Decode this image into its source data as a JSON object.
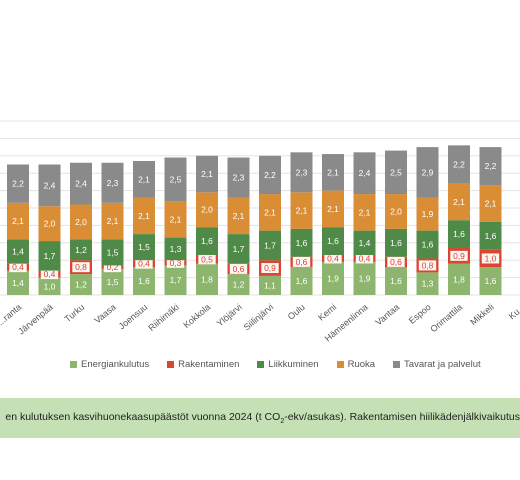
{
  "chart_data": {
    "type": "bar",
    "stacked": true,
    "categories": [
      "...ranta",
      "Järvenpää",
      "Turku",
      "Vaasa",
      "Joensuu",
      "Riihimäki",
      "Kokkola",
      "Ylöjärvi",
      "Siilinjärvi",
      "Oulu",
      "Kemi",
      "Hämeenlinna",
      "Vantaa",
      "Espoo",
      "Orimattila",
      "Mikkeli",
      "Ku..."
    ],
    "series": [
      {
        "name": "Energiankulutus",
        "color": "#8db56e",
        "values": [
          1.4,
          1.0,
          1.2,
          1.5,
          1.6,
          1.7,
          1.8,
          1.2,
          1.1,
          1.6,
          1.9,
          1.9,
          1.6,
          1.3,
          1.8,
          1.6,
          null
        ],
        "labels": [
          "1,4",
          "1,0",
          "1,2",
          "1,5",
          "1,6",
          "1,7",
          "1,8",
          "1,2",
          "1,1",
          "1,6",
          "1,9",
          "1,9",
          "1,6",
          "1,3",
          "1,8",
          "1,6",
          ""
        ]
      },
      {
        "name": "Rakentaminen",
        "color": "#d9452e",
        "values": [
          0.4,
          0.4,
          0.8,
          0.2,
          0.4,
          0.3,
          0.5,
          0.6,
          0.9,
          0.6,
          0.4,
          0.4,
          0.6,
          0.8,
          0.9,
          1.0,
          null
        ],
        "labels": [
          "0,4",
          "0,4",
          "0,8",
          "0,2",
          "0,4",
          "0,3",
          "0,5",
          "0,6",
          "0,9",
          "0,6",
          "0,4",
          "0,4",
          "0,6",
          "0,8",
          "0,9",
          "1,0",
          ""
        ]
      },
      {
        "name": "Liikkuminen",
        "color": "#4f8a48",
        "values": [
          1.4,
          1.7,
          1.2,
          1.5,
          1.5,
          1.3,
          1.6,
          1.7,
          1.7,
          1.6,
          1.6,
          1.4,
          1.6,
          1.6,
          1.6,
          1.6,
          null
        ],
        "labels": [
          "1,4",
          "1,7",
          "1,2",
          "1,5",
          "1,5",
          "1,3",
          "1,6",
          "1,7",
          "1,7",
          "1,6",
          "1,6",
          "1,4",
          "1,6",
          "1,6",
          "1,6",
          "1,6",
          ""
        ]
      },
      {
        "name": "Ruoka",
        "color": "#d98e35",
        "values": [
          2.1,
          2.0,
          2.0,
          2.1,
          2.1,
          2.1,
          2.0,
          2.1,
          2.1,
          2.1,
          2.1,
          2.1,
          2.0,
          1.9,
          2.1,
          2.1,
          null
        ],
        "labels": [
          "2,1",
          "2,0",
          "2,0",
          "2,1",
          "2,1",
          "2,1",
          "2,0",
          "2,1",
          "2,1",
          "2,1",
          "2,1",
          "2,1",
          "2,0",
          "1,9",
          "2,1",
          "2,1",
          ""
        ]
      },
      {
        "name": "Tavarat ja palvelut",
        "color": "#8a8a8a",
        "values": [
          2.2,
          2.4,
          2.4,
          2.3,
          2.1,
          2.5,
          2.1,
          2.3,
          2.2,
          2.3,
          2.1,
          2.4,
          2.5,
          2.9,
          2.2,
          2.2,
          null
        ],
        "labels": [
          "2,2",
          "2,4",
          "2,4",
          "2,3",
          "2,1",
          "2,5",
          "2,1",
          "2,3",
          "2,2",
          "2,3",
          "2,1",
          "2,4",
          "2,5",
          "2,9",
          "2,2",
          "2,2",
          ""
        ]
      }
    ],
    "ylim": [
      0,
      10
    ],
    "grid": true,
    "legend_position": "bottom"
  },
  "caption": {
    "before_sub": "en kulutuksen kasvihuonekaasupäästöt vuonna 2024 (t CO",
    "sub": "2",
    "after_sub": "-ekv/asukas). Rakentamisen hiilikädenjälkivaikutus"
  }
}
